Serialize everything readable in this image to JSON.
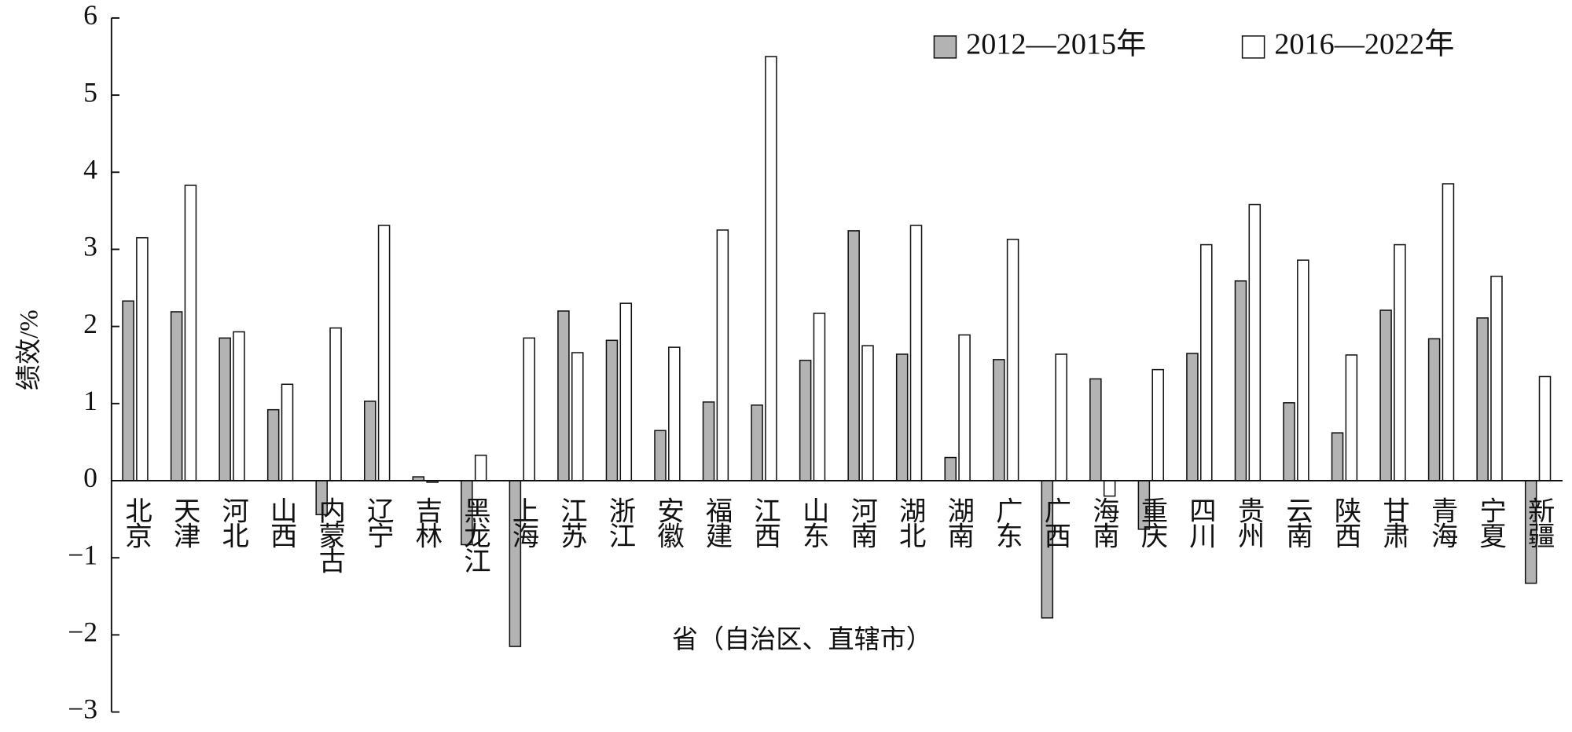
{
  "chart_data": {
    "type": "bar",
    "y_label": "绩效/%",
    "x_label": "省（自治区、直辖市）",
    "categories": [
      "北京",
      "天津",
      "河北",
      "山西",
      "内蒙古",
      "辽宁",
      "吉林",
      "黑龙江",
      "上海",
      "江苏",
      "浙江",
      "安徽",
      "福建",
      "江西",
      "山东",
      "河南",
      "湖北",
      "湖南",
      "广东",
      "广西",
      "海南",
      "重庆",
      "四川",
      "贵州",
      "云南",
      "陕西",
      "甘肃",
      "青海",
      "宁夏",
      "新疆"
    ],
    "series": [
      {
        "name": "2012—2015年",
        "color": "#b3b3b3",
        "values": [
          2.33,
          2.19,
          1.85,
          0.92,
          -0.44,
          1.03,
          0.05,
          -0.83,
          -2.15,
          2.2,
          1.82,
          0.65,
          1.02,
          0.98,
          1.56,
          3.24,
          1.64,
          0.3,
          1.57,
          -1.78,
          1.32,
          -0.63,
          1.65,
          2.59,
          1.01,
          0.62,
          2.21,
          1.84,
          2.11,
          -1.33
        ]
      },
      {
        "name": "2016—2022年",
        "color": "#ffffff",
        "values": [
          3.15,
          3.83,
          1.93,
          1.25,
          1.98,
          3.31,
          -0.02,
          0.33,
          1.85,
          1.66,
          2.3,
          1.73,
          3.25,
          5.5,
          2.17,
          1.75,
          3.31,
          1.89,
          3.13,
          1.64,
          -0.2,
          1.44,
          3.06,
          3.58,
          2.86,
          1.63,
          3.06,
          3.85,
          2.65,
          1.35
        ]
      }
    ],
    "ylim": [
      -3,
      6
    ],
    "yticks": [
      {
        "value": -3,
        "label": "−3"
      },
      {
        "value": -2,
        "label": "−2"
      },
      {
        "value": -1,
        "label": "−1"
      },
      0,
      1,
      2,
      3,
      4,
      5,
      6
    ],
    "legend": "top-right",
    "grid": false
  }
}
